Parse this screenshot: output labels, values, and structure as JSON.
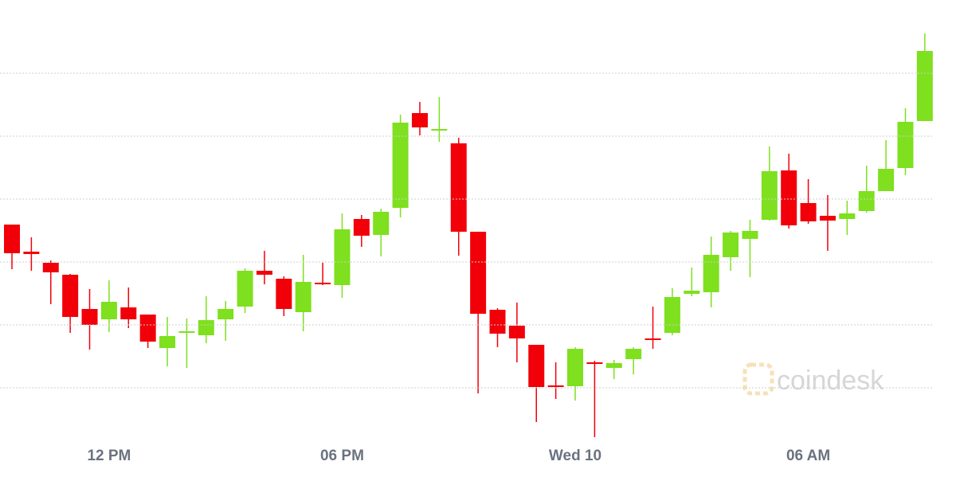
{
  "chart_data": {
    "type": "candlestick",
    "categories": [
      null,
      null,
      null,
      null,
      null,
      "12 PM",
      null,
      null,
      null,
      null,
      null,
      null,
      null,
      null,
      null,
      null,
      null,
      "06 PM",
      null,
      null,
      null,
      null,
      null,
      null,
      null,
      null,
      null,
      null,
      null,
      "Wed 10",
      null,
      null,
      null,
      null,
      null,
      null,
      null,
      null,
      null,
      null,
      null,
      "06 AM",
      null,
      null,
      null,
      null,
      null,
      null
    ],
    "open": [
      284,
      250,
      236,
      221,
      178,
      165,
      180,
      171,
      129,
      148,
      145,
      165,
      181,
      226,
      216,
      174,
      211,
      208,
      291,
      271,
      305,
      424,
      402,
      386,
      275,
      177,
      157,
      133,
      82,
      81,
      111,
      104,
      115,
      141,
      148,
      197,
      199,
      243,
      266,
      290,
      352,
      311,
      295,
      291,
      301,
      326,
      355,
      414
    ],
    "high": [
      284,
      268,
      239,
      222,
      203,
      214,
      205,
      171,
      168,
      166,
      194,
      188,
      229,
      251,
      219,
      246,
      236,
      298,
      296,
      304,
      422,
      438,
      444,
      393,
      275,
      179,
      186,
      133,
      111,
      130,
      113,
      114,
      130,
      181,
      204,
      230,
      269,
      276,
      290,
      382,
      373,
      341,
      321,
      314,
      358,
      390,
      430,
      524
    ],
    "low": [
      228,
      226,
      184,
      148,
      127,
      149,
      154,
      129,
      106,
      104,
      135,
      138,
      173,
      209,
      169,
      150,
      208,
      192,
      256,
      244,
      293,
      396,
      388,
      245,
      72,
      130,
      111,
      36,
      65,
      63,
      17,
      90,
      96,
      128,
      145,
      194,
      180,
      226,
      218,
      289,
      279,
      285,
      251,
      271,
      299,
      326,
      346,
      414
    ],
    "close": [
      248,
      247,
      224,
      168,
      158,
      187,
      165,
      137,
      144,
      150,
      164,
      178,
      226,
      221,
      178,
      212,
      209,
      278,
      270,
      300,
      412,
      406,
      404,
      275,
      172,
      147,
      141,
      80,
      80,
      128,
      109,
      110,
      128,
      139,
      193,
      201,
      246,
      274,
      276,
      351,
      283,
      288,
      289,
      298,
      326,
      354,
      413,
      502
    ],
    "colors": {
      "up": "#7ee01e",
      "down": "#f2000a"
    },
    "ylim": [
      0,
      553
    ],
    "yticks": [
      79,
      158,
      237,
      316,
      395,
      474
    ],
    "grid": true,
    "watermark": "coindesk"
  }
}
